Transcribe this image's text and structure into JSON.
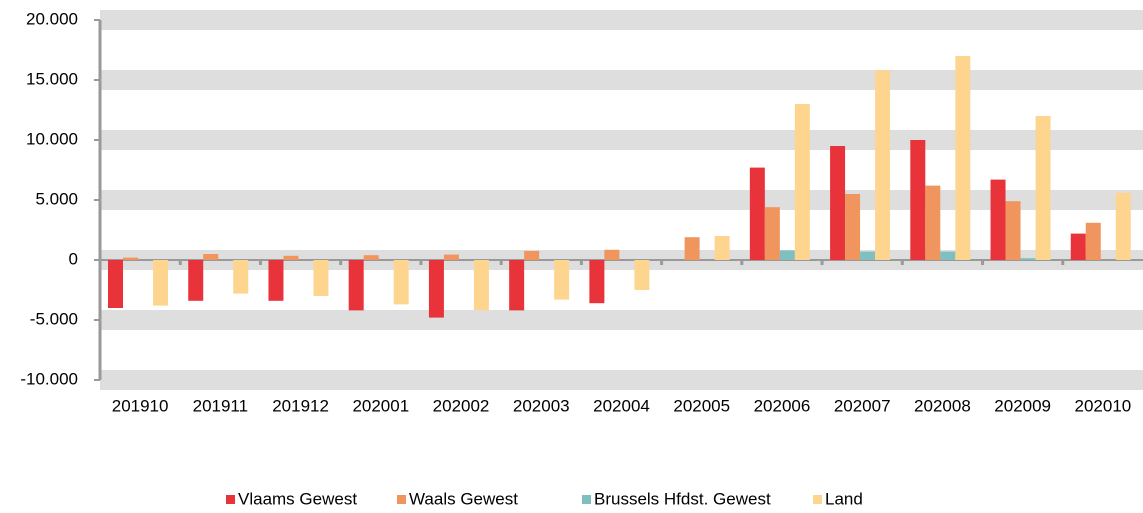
{
  "chart_data": {
    "type": "bar",
    "categories": [
      "201910",
      "201911",
      "201912",
      "202001",
      "202002",
      "202003",
      "202004",
      "202005",
      "202006",
      "202007",
      "202008",
      "202009",
      "202010"
    ],
    "series": [
      {
        "name": "Vlaams Gewest",
        "color": "#e8333a",
        "values": [
          -4000,
          -3400,
          -3400,
          -4200,
          -4800,
          -4200,
          -3600,
          0,
          7700,
          9500,
          10000,
          6700,
          2200
        ]
      },
      {
        "name": "Waals Gewest",
        "color": "#f0955e",
        "values": [
          200,
          500,
          350,
          400,
          450,
          750,
          850,
          1900,
          4400,
          5500,
          6200,
          4900,
          3100
        ]
      },
      {
        "name": "Brussels Hfdst. Gewest",
        "color": "#7fbfbf",
        "values": [
          0,
          0,
          0,
          0,
          0,
          0,
          0,
          0,
          800,
          700,
          700,
          150,
          0
        ]
      },
      {
        "name": "Land",
        "color": "#fdd58f",
        "values": [
          -3800,
          -2800,
          -3000,
          -3700,
          -4200,
          -3300,
          -2500,
          2000,
          13000,
          15800,
          17000,
          12000,
          5600
        ]
      }
    ],
    "ylim": [
      -10000,
      20000
    ],
    "yticks": [
      {
        "value": -10000,
        "label": "-10.000"
      },
      {
        "value": -5000,
        "label": "-5.000"
      },
      0,
      {
        "value": 5000,
        "label": "5.000"
      },
      {
        "value": 10000,
        "label": "10.000"
      },
      {
        "value": 15000,
        "label": "15.000"
      },
      {
        "value": 20000,
        "label": "20.000"
      }
    ],
    "grid": true,
    "legend": "bottom"
  }
}
